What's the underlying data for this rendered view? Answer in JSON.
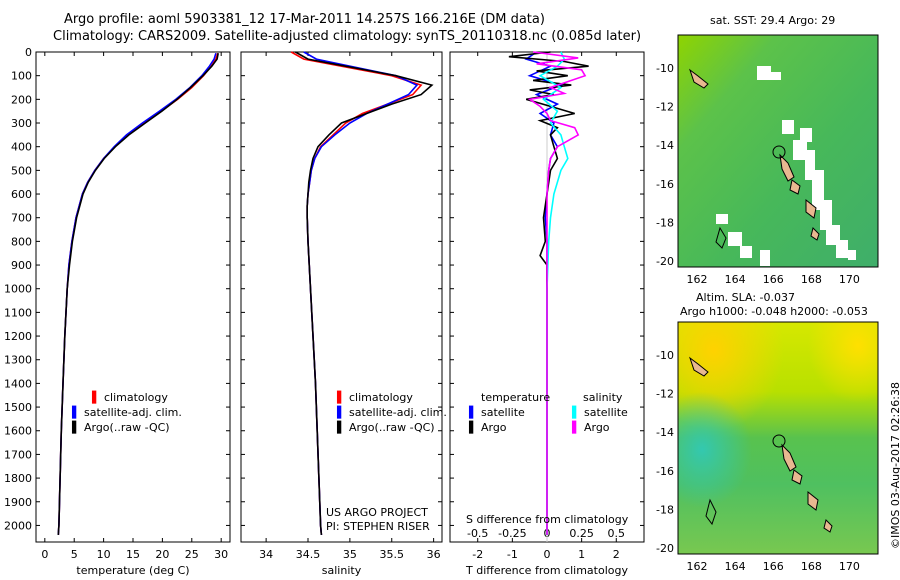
{
  "header": {
    "line1": "Argo profile: aoml 5903381_12 17-Mar-2011 14.257S 166.216E (DM data)",
    "line2": "Climatology: CARS2009. Satellite-adjusted climatology: synTS_20110318.nc (0.085d later)"
  },
  "colors": {
    "climatology": "#ff0000",
    "satellite": "#0000ff",
    "argo": "#000000",
    "sal_satellite": "#00ffff",
    "sal_argo": "#ff00ff"
  },
  "depth_axis": {
    "ticks": [
      0,
      100,
      200,
      300,
      400,
      500,
      600,
      700,
      800,
      900,
      1000,
      1100,
      1200,
      1300,
      1400,
      1500,
      1600,
      1700,
      1800,
      1900,
      2000
    ],
    "range": [
      0,
      2070
    ]
  },
  "chart_data": [
    {
      "type": "line",
      "id": "temperature",
      "xlabel": "temperature (deg C)",
      "xlim": [
        -1.5,
        31.5
      ],
      "ylim": [
        0,
        2070
      ],
      "xticks": [
        0,
        5,
        10,
        15,
        20,
        25,
        30
      ],
      "legend": [
        "climatology",
        "satellite-adj. clim.",
        "Argo(..raw -QC)"
      ],
      "series": [
        {
          "name": "climatology",
          "depth": [
            5,
            30,
            60,
            100,
            150,
            200,
            250,
            300,
            350,
            400,
            450,
            500,
            550,
            600,
            700,
            800,
            900,
            1000,
            1200,
            1400,
            1600,
            1800,
            2000,
            2040
          ],
          "values": [
            29.4,
            29.1,
            28.3,
            27.0,
            25.0,
            22.6,
            19.8,
            16.8,
            14.1,
            11.9,
            10.0,
            8.5,
            7.3,
            6.4,
            5.3,
            4.6,
            4.1,
            3.8,
            3.4,
            3.1,
            2.8,
            2.6,
            2.4,
            2.3
          ]
        },
        {
          "name": "satellite-adj. clim.",
          "depth": [
            5,
            30,
            60,
            100,
            150,
            200,
            250,
            300,
            350,
            400,
            450,
            500,
            550,
            600,
            700,
            800,
            900,
            1000,
            1200,
            1400,
            1600,
            1800,
            2000,
            2040
          ],
          "values": [
            29.1,
            28.8,
            28.0,
            26.7,
            24.7,
            22.3,
            19.5,
            16.6,
            13.9,
            11.8,
            10.0,
            8.5,
            7.3,
            6.4,
            5.3,
            4.6,
            4.1,
            3.8,
            3.4,
            3.1,
            2.8,
            2.6,
            2.4,
            2.3
          ]
        },
        {
          "name": "Argo(..raw -QC)",
          "depth": [
            5,
            30,
            60,
            100,
            150,
            200,
            250,
            300,
            350,
            400,
            450,
            500,
            550,
            600,
            700,
            800,
            900,
            1000,
            1200,
            1400,
            1600,
            1800,
            2000,
            2040
          ],
          "values": [
            29.5,
            29.3,
            28.4,
            26.9,
            24.8,
            22.5,
            19.9,
            17.1,
            14.3,
            12.0,
            10.1,
            8.6,
            7.4,
            6.5,
            5.4,
            4.7,
            4.2,
            3.8,
            3.4,
            3.1,
            2.8,
            2.6,
            2.4,
            2.3
          ]
        }
      ]
    },
    {
      "type": "line",
      "id": "salinity",
      "xlabel": "salinity",
      "xlim": [
        33.7,
        36.1
      ],
      "ylim": [
        0,
        2070
      ],
      "xticks": [
        34,
        34.5,
        35,
        35.5,
        36
      ],
      "xtick_labels": [
        "34",
        "34.5",
        "35",
        "35.5",
        "36"
      ],
      "legend": [
        "climatology",
        "satellite-adj. clim.",
        "Argo(..raw -QC)"
      ],
      "series": [
        {
          "name": "climatology",
          "depth": [
            0,
            30,
            60,
            100,
            140,
            180,
            220,
            260,
            300,
            350,
            400,
            450,
            500,
            550,
            600,
            650,
            700,
            800,
            1000,
            1200,
            1400,
            1600,
            1800,
            2000,
            2040
          ],
          "values": [
            34.3,
            34.45,
            34.9,
            35.5,
            35.85,
            35.75,
            35.45,
            35.15,
            34.95,
            34.8,
            34.65,
            34.58,
            34.54,
            34.52,
            34.5,
            34.49,
            34.49,
            34.5,
            34.53,
            34.56,
            34.59,
            34.61,
            34.63,
            34.65,
            34.66
          ]
        },
        {
          "name": "satellite-adj. clim.",
          "depth": [
            0,
            30,
            60,
            100,
            140,
            180,
            220,
            260,
            300,
            350,
            400,
            450,
            500,
            550,
            600,
            650,
            700,
            800,
            1000,
            1200,
            1400,
            1600,
            1800,
            2000,
            2040
          ],
          "values": [
            34.45,
            34.6,
            35.0,
            35.55,
            35.8,
            35.7,
            35.45,
            35.2,
            35.0,
            34.82,
            34.66,
            34.58,
            34.54,
            34.52,
            34.5,
            34.49,
            34.49,
            34.5,
            34.53,
            34.56,
            34.59,
            34.61,
            34.63,
            34.65,
            34.66
          ]
        },
        {
          "name": "Argo(..raw -QC)",
          "depth": [
            0,
            30,
            60,
            100,
            140,
            180,
            220,
            260,
            300,
            350,
            400,
            450,
            500,
            550,
            600,
            650,
            700,
            800,
            1000,
            1200,
            1400,
            1600,
            1800,
            2000,
            2040
          ],
          "values": [
            34.35,
            34.5,
            34.95,
            35.55,
            35.98,
            35.85,
            35.5,
            35.2,
            34.9,
            34.75,
            34.62,
            34.56,
            34.53,
            34.51,
            34.5,
            34.49,
            34.49,
            34.5,
            34.53,
            34.56,
            34.59,
            34.61,
            34.63,
            34.65,
            34.66
          ]
        }
      ],
      "annotation": [
        "US ARGO PROJECT",
        "PI: STEPHEN RISER"
      ]
    },
    {
      "type": "line",
      "id": "difference",
      "xlabel_top": "S difference from climatology",
      "xlabel": "T difference from climatology",
      "xlim": [
        -2.8,
        2.8
      ],
      "ylim": [
        0,
        2070
      ],
      "xticks": [
        -2,
        -1,
        0,
        1,
        2
      ],
      "xtick_labels_top": [
        "-0.5",
        "-0.25",
        "0",
        "0.25",
        "0.5"
      ],
      "xticks_top": [
        -2,
        -1,
        0,
        1,
        2
      ],
      "legend_left_title": "temperature",
      "legend_right_title": "salinity",
      "legend_left": [
        "satellite",
        "Argo"
      ],
      "legend_right": [
        "satellite",
        "Argo"
      ],
      "series": [
        {
          "name": "T satellite",
          "depth": [
            0,
            30,
            60,
            100,
            140,
            180,
            220,
            260,
            300,
            350,
            400,
            450,
            500,
            600,
            700,
            800,
            900,
            1000,
            1200,
            1500,
            2000,
            2040
          ],
          "values": [
            -0.3,
            -0.6,
            0.1,
            -0.5,
            0.4,
            -0.3,
            0.3,
            -0.2,
            0.2,
            0.1,
            0.3,
            0.1,
            0.05,
            0.0,
            -0.05,
            0.0,
            0.0,
            0.0,
            0.0,
            0.0,
            0.0,
            0.0
          ]
        },
        {
          "name": "T Argo",
          "depth": [
            0,
            20,
            40,
            60,
            80,
            100,
            120,
            140,
            160,
            180,
            200,
            230,
            260,
            290,
            320,
            350,
            400,
            450,
            500,
            600,
            700,
            800,
            860,
            900,
            1000,
            1200,
            1500,
            2000,
            2040
          ],
          "values": [
            0.1,
            -1.1,
            0.5,
            1.2,
            -0.3,
            0.6,
            -0.4,
            0.7,
            -0.5,
            0.2,
            -0.6,
            0.1,
            0.8,
            -0.2,
            0.3,
            0.1,
            0.2,
            0.3,
            0.1,
            0.0,
            -0.1,
            -0.05,
            -0.2,
            0.0,
            0.0,
            0.0,
            0.0,
            0.0,
            0.0
          ]
        },
        {
          "name": "S satellite",
          "depth": [
            0,
            30,
            60,
            100,
            150,
            200,
            250,
            300,
            350,
            400,
            450,
            500,
            600,
            700,
            800,
            1000,
            1200,
            1500,
            2000,
            2040
          ],
          "values": [
            0.4,
            0.5,
            0.3,
            -0.2,
            0.4,
            -0.1,
            0.3,
            0.1,
            0.4,
            0.5,
            0.6,
            0.4,
            0.2,
            0.1,
            0.05,
            0.0,
            0.0,
            0.0,
            0.0,
            0.0
          ]
        },
        {
          "name": "S Argo",
          "depth": [
            0,
            25,
            50,
            75,
            100,
            125,
            150,
            175,
            200,
            230,
            260,
            290,
            320,
            350,
            400,
            450,
            500,
            600,
            700,
            800,
            1000,
            1500,
            2000,
            2040
          ],
          "values": [
            -0.4,
            0.9,
            -0.3,
            1.0,
            1.1,
            0.6,
            0.1,
            0.5,
            -0.5,
            -0.2,
            0.0,
            0.1,
            0.8,
            0.9,
            0.3,
            0.1,
            0.05,
            0.0,
            0.0,
            0.0,
            0.0,
            0.0,
            0.0,
            0.0
          ]
        }
      ]
    },
    {
      "type": "heatmap",
      "id": "sst_map",
      "title": "sat. SST: 29.4 Argo: 29",
      "xticks": [
        162,
        164,
        166,
        168,
        170
      ],
      "yticks": [
        -10,
        -12,
        -14,
        -16,
        -18,
        -20
      ],
      "xlim": [
        161,
        171.5
      ],
      "ylim": [
        -20.3,
        -8.3
      ],
      "marker": [
        166.216,
        -14.257
      ]
    },
    {
      "type": "heatmap",
      "id": "sla_map",
      "title": "Altim. SLA: -0.037",
      "subtitle": "Argo h1000: -0.048 h2000: -0.053",
      "xticks": [
        162,
        164,
        166,
        168,
        170
      ],
      "yticks": [
        -10,
        -12,
        -14,
        -16,
        -18,
        -20
      ],
      "xlim": [
        161,
        171.5
      ],
      "ylim": [
        -20.3,
        -8.3
      ],
      "marker": [
        166.216,
        -14.257
      ]
    }
  ],
  "copyright": "©IMOS 03-Aug-2017 02:26:38"
}
